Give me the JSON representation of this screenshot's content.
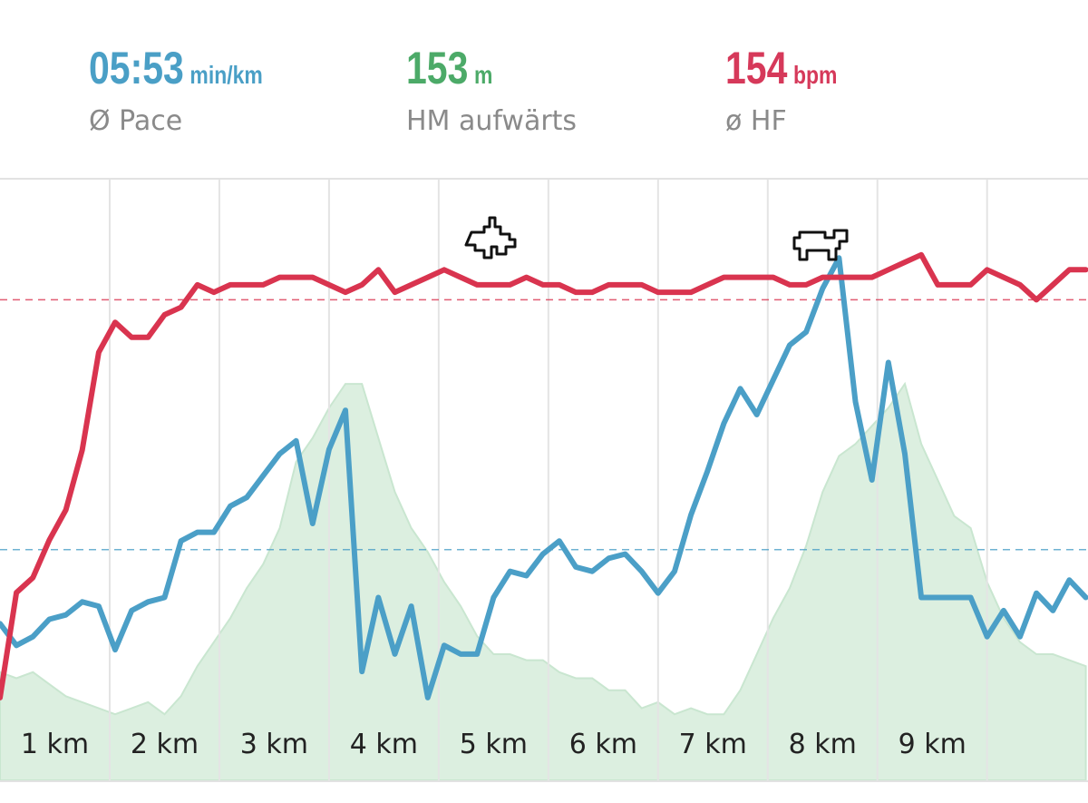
{
  "stats": [
    {
      "value": "05:53",
      "unit": "min/km",
      "label": "Ø Pace",
      "color": "#4a9fc6"
    },
    {
      "value": 153,
      "unit": "m",
      "label": "HM aufwärts",
      "color": "#4caa68"
    },
    {
      "value": 154,
      "unit": "bpm",
      "label": "ø HF",
      "color": "#d6395a"
    }
  ],
  "chart_data": {
    "type": "line",
    "x": [
      0,
      0.15,
      0.3,
      0.45,
      0.6,
      0.75,
      0.9,
      1.05,
      1.2,
      1.35,
      1.5,
      1.65,
      1.8,
      1.95,
      2.1,
      2.25,
      2.4,
      2.55,
      2.7,
      2.85,
      3,
      3.15,
      3.3,
      3.45,
      3.6,
      3.75,
      3.9,
      4.05,
      4.2,
      4.35,
      4.5,
      4.65,
      4.8,
      4.95,
      5.1,
      5.25,
      5.4,
      5.55,
      5.7,
      5.85,
      6,
      6.15,
      6.3,
      6.45,
      6.6,
      6.75,
      6.9,
      7.05,
      7.2,
      7.35,
      7.5,
      7.65,
      7.8,
      7.95,
      8.1,
      8.25,
      8.4,
      8.55,
      8.7,
      8.85,
      9,
      9.15,
      9.3,
      9.45,
      9.6,
      9.75,
      9.9
    ],
    "xlim": [
      0,
      9.92
    ],
    "xticks": [
      {
        "value": 1,
        "label": "1 km"
      },
      {
        "value": 2,
        "label": "2 km"
      },
      {
        "value": 3,
        "label": "3 km"
      },
      {
        "value": 4,
        "label": "4 km"
      },
      {
        "value": 5,
        "label": "5 km"
      },
      {
        "value": 6,
        "label": "6 km"
      },
      {
        "value": 7,
        "label": "7 km"
      },
      {
        "value": 8,
        "label": "8 km"
      },
      {
        "value": 9,
        "label": "9 km"
      }
    ],
    "grid": true,
    "series": [
      {
        "kind": "area",
        "color": "#dcefe0",
        "ylim": [
          0,
          100
        ],
        "values": [
          18,
          17,
          18,
          16,
          14,
          13,
          12,
          11,
          12,
          13,
          11,
          14,
          19,
          23,
          27,
          32,
          36,
          42,
          53,
          57,
          62,
          66,
          66,
          57,
          48,
          42,
          38,
          33,
          29,
          24,
          21,
          21,
          20,
          20,
          18,
          17,
          17,
          15,
          15,
          12,
          13,
          11,
          12,
          11,
          11,
          15,
          21,
          27,
          32,
          39,
          48,
          54,
          56,
          59,
          62,
          66,
          56,
          50,
          44,
          42,
          33,
          27,
          23,
          21,
          21,
          20,
          19
        ]
      },
      {
        "kind": "line",
        "color": "#4b9fc7",
        "ylim": [
          300,
          438
        ],
        "average": 353,
        "values": [
          336,
          331,
          333,
          337,
          338,
          341,
          340,
          330,
          339,
          341,
          342,
          355,
          357,
          357,
          363,
          365,
          370,
          375,
          378,
          359,
          376,
          385,
          325,
          342,
          329,
          340,
          319,
          331,
          329,
          329,
          342,
          348,
          347,
          352,
          355,
          349,
          348,
          351,
          352,
          348,
          343,
          348,
          361,
          371,
          382,
          390,
          384,
          392,
          400,
          403,
          413,
          420,
          387,
          369,
          396,
          375,
          342,
          342,
          342,
          342,
          333,
          339,
          333,
          343,
          339,
          346,
          342
        ]
      },
      {
        "kind": "line",
        "color": "#d9344f",
        "ylim": [
          90,
          170
        ],
        "average": 154,
        "values": [
          101,
          115,
          117,
          122,
          126,
          134,
          147,
          151,
          149,
          149,
          152,
          153,
          156,
          155,
          156,
          156,
          156,
          157,
          157,
          157,
          156,
          155,
          156,
          158,
          155,
          156,
          157,
          158,
          157,
          156,
          156,
          156,
          157,
          156,
          156,
          155,
          155,
          156,
          156,
          156,
          155,
          155,
          155,
          156,
          157,
          157,
          157,
          157,
          156,
          156,
          157,
          157,
          157,
          157,
          158,
          159,
          160,
          156,
          156,
          156,
          158,
          157,
          156,
          154,
          156,
          158,
          158
        ]
      }
    ]
  }
}
